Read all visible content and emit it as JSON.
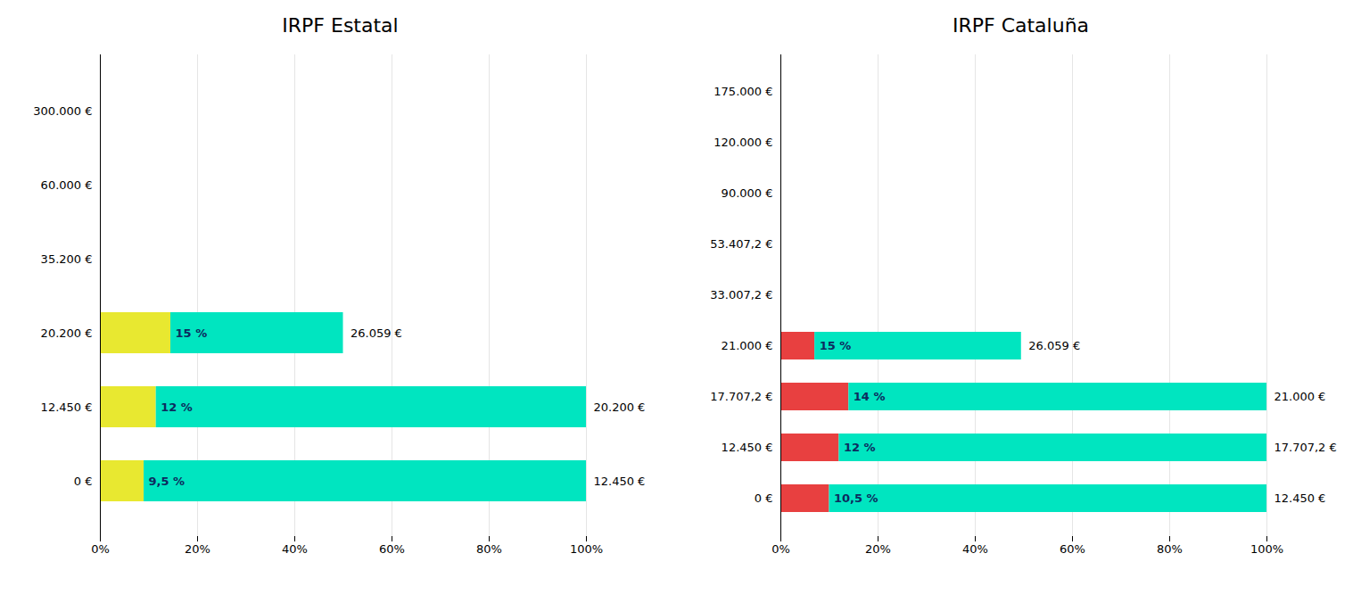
{
  "chart_data": [
    {
      "type": "bar",
      "orientation": "horizontal",
      "stacked": true,
      "grid": true,
      "title": "IRPF Estatal",
      "categories": [
        "300.000 €",
        "60.000 €",
        "35.200 €",
        "20.200 €",
        "12.450 €",
        "0 €"
      ],
      "series": [
        {
          "color": "#e8e830",
          "values": [
            null,
            null,
            null,
            0.145,
            0.115,
            0.09
          ]
        },
        {
          "color": "#00e5c0",
          "values": [
            null,
            null,
            null,
            0.355,
            0.885,
            0.91
          ]
        }
      ],
      "rate_labels": [
        null,
        null,
        null,
        "15 %",
        "12 %",
        "9,5 %"
      ],
      "end_labels": [
        null,
        null,
        null,
        "26.059 €",
        "20.200 €",
        "12.450 €"
      ],
      "xlim": [
        0,
        1.0
      ],
      "xticks": [
        {
          "value": 0,
          "label": "0%"
        },
        {
          "value": 0.2,
          "label": "20%"
        },
        {
          "value": 0.4,
          "label": "40%"
        },
        {
          "value": 0.6,
          "label": "60%"
        },
        {
          "value": 0.8,
          "label": "80%"
        },
        {
          "value": 1.0,
          "label": "100%"
        }
      ]
    },
    {
      "type": "bar",
      "orientation": "horizontal",
      "stacked": true,
      "grid": true,
      "title": "IRPF Cataluña",
      "categories": [
        "175.000 €",
        "120.000 €",
        "90.000 €",
        "53.407,2 €",
        "33.007,2 €",
        "21.000 €",
        "17.707,2 €",
        "12.450 €",
        "0 €"
      ],
      "series": [
        {
          "color": "#e84040",
          "values": [
            null,
            null,
            null,
            null,
            null,
            0.07,
            0.14,
            0.12,
            0.1
          ]
        },
        {
          "color": "#00e5c0",
          "values": [
            null,
            null,
            null,
            null,
            null,
            0.425,
            0.86,
            0.88,
            0.9
          ]
        }
      ],
      "rate_labels": [
        null,
        null,
        null,
        null,
        null,
        "15 %",
        "14 %",
        "12 %",
        "10,5 %"
      ],
      "end_labels": [
        null,
        null,
        null,
        null,
        null,
        "26.059 €",
        "21.000 €",
        "17.707,2 €",
        "12.450 €"
      ],
      "xlim": [
        0,
        1.0
      ],
      "xticks": [
        {
          "value": 0,
          "label": "0%"
        },
        {
          "value": 0.2,
          "label": "20%"
        },
        {
          "value": 0.4,
          "label": "40%"
        },
        {
          "value": 0.6,
          "label": "60%"
        },
        {
          "value": 0.8,
          "label": "80%"
        },
        {
          "value": 1.0,
          "label": "100%"
        }
      ]
    }
  ]
}
